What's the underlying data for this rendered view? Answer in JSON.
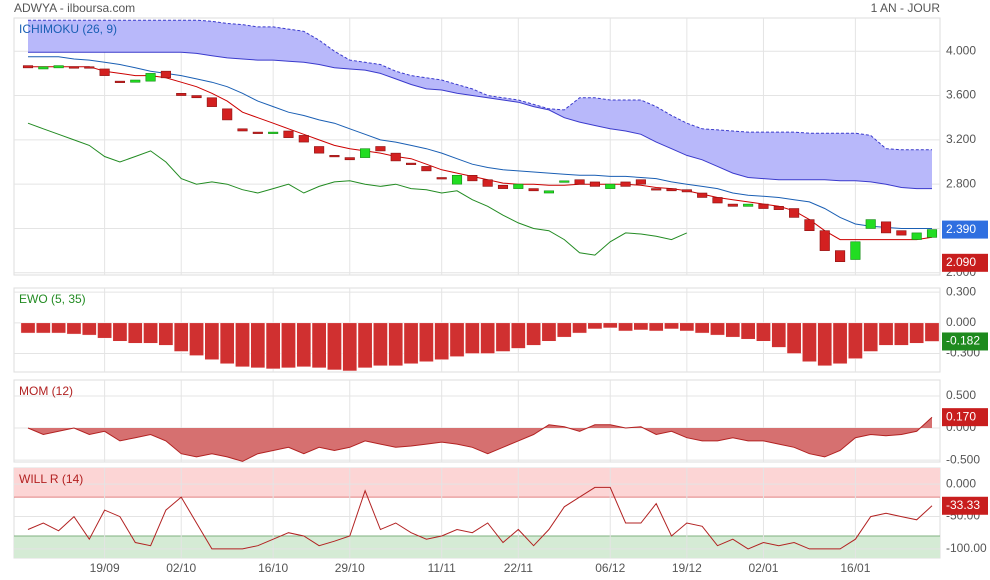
{
  "header": {
    "source": "ADWYA - ilboursa.com",
    "period": "1 AN - JOUR"
  },
  "chart_data": [
    {
      "type": "candlestick",
      "title": "ICHIMOKU (26, 9)",
      "title_color": "#1a5fb4",
      "categories": [
        null,
        null,
        null,
        null,
        null,
        "19/09",
        null,
        null,
        null,
        null,
        "02/10",
        null,
        null,
        null,
        null,
        null,
        "16/10",
        null,
        null,
        null,
        null,
        "29/10",
        null,
        null,
        null,
        null,
        null,
        "11/11",
        null,
        null,
        null,
        null,
        "22/11",
        null,
        null,
        null,
        null,
        null,
        "06/12",
        null,
        null,
        null,
        null,
        "19/12",
        null,
        null,
        null,
        null,
        "02/01",
        null,
        null,
        null,
        null,
        null,
        "16/01",
        null,
        null,
        null,
        null,
        null
      ],
      "open": [
        3.87,
        3.84,
        3.85,
        3.86,
        3.86,
        3.84,
        3.73,
        3.72,
        3.73,
        3.82,
        3.62,
        3.6,
        3.58,
        3.48,
        3.3,
        3.27,
        3.26,
        3.28,
        3.24,
        3.14,
        3.06,
        3.04,
        3.04,
        3.14,
        3.08,
        2.99,
        2.96,
        2.86,
        2.8,
        2.88,
        2.84,
        2.79,
        2.76,
        2.76,
        2.72,
        2.82,
        2.84,
        2.82,
        2.76,
        2.82,
        2.84,
        2.76,
        2.76,
        2.75,
        2.72,
        2.68,
        2.62,
        2.6,
        2.62,
        2.6,
        2.58,
        2.48,
        2.38,
        2.2,
        2.12,
        2.4,
        2.46,
        2.38,
        2.3,
        2.32
      ],
      "close": [
        3.85,
        3.86,
        3.87,
        3.85,
        3.86,
        3.78,
        3.72,
        3.74,
        3.8,
        3.76,
        3.6,
        3.58,
        3.5,
        3.38,
        3.28,
        3.27,
        3.27,
        3.22,
        3.18,
        3.08,
        3.05,
        3.02,
        3.12,
        3.1,
        3.01,
        2.98,
        2.92,
        2.85,
        2.88,
        2.83,
        2.78,
        2.76,
        2.8,
        2.74,
        2.74,
        2.83,
        2.8,
        2.78,
        2.8,
        2.78,
        2.8,
        2.75,
        2.74,
        2.73,
        2.68,
        2.63,
        2.6,
        2.62,
        2.58,
        2.57,
        2.5,
        2.38,
        2.2,
        2.1,
        2.28,
        2.48,
        2.36,
        2.34,
        2.36,
        2.39
      ],
      "up_color": "#22dd22",
      "down_color": "#d32020",
      "cloud": {
        "color": "#b8b8fa",
        "edge_color": "#3a3acc",
        "upper": [
          4.28,
          4.28,
          4.28,
          4.28,
          4.28,
          4.28,
          4.28,
          4.28,
          4.28,
          4.28,
          4.28,
          4.28,
          4.27,
          4.25,
          4.24,
          4.22,
          4.22,
          4.2,
          4.18,
          4.1,
          4.0,
          3.92,
          3.9,
          3.88,
          3.82,
          3.78,
          3.76,
          3.74,
          3.7,
          3.66,
          3.6,
          3.58,
          3.56,
          3.52,
          3.48,
          3.47,
          3.58,
          3.58,
          3.56,
          3.56,
          3.56,
          3.5,
          3.42,
          3.35,
          3.3,
          3.29,
          3.28,
          3.27,
          3.27,
          3.27,
          3.27,
          3.26,
          3.26,
          3.26,
          3.26,
          3.24,
          3.12,
          3.11,
          3.11,
          3.11
        ],
        "lower": [
          3.99,
          3.99,
          3.99,
          3.99,
          3.99,
          3.99,
          3.99,
          3.99,
          3.99,
          3.99,
          3.99,
          3.98,
          3.96,
          3.94,
          3.93,
          3.92,
          3.92,
          3.91,
          3.9,
          3.88,
          3.85,
          3.84,
          3.83,
          3.8,
          3.75,
          3.7,
          3.66,
          3.65,
          3.62,
          3.6,
          3.58,
          3.56,
          3.54,
          3.5,
          3.47,
          3.4,
          3.36,
          3.33,
          3.3,
          3.28,
          3.25,
          3.18,
          3.12,
          3.06,
          3.02,
          2.96,
          2.9,
          2.86,
          2.85,
          2.84,
          2.84,
          2.84,
          2.84,
          2.83,
          2.83,
          2.82,
          2.8,
          2.77,
          2.76,
          2.76
        ]
      },
      "series": [
        {
          "color": "#cc0000",
          "values": [
            3.86,
            3.86,
            3.86,
            3.86,
            3.86,
            3.82,
            3.8,
            3.78,
            3.78,
            3.76,
            3.72,
            3.68,
            3.62,
            3.55,
            3.45,
            3.4,
            3.35,
            3.3,
            3.25,
            3.2,
            3.15,
            3.12,
            3.1,
            3.08,
            3.05,
            3.03,
            2.98,
            2.93,
            2.9,
            2.87,
            2.84,
            2.81,
            2.8,
            2.8,
            2.79,
            2.79,
            2.8,
            2.8,
            2.8,
            2.8,
            2.79,
            2.77,
            2.76,
            2.74,
            2.71,
            2.68,
            2.66,
            2.64,
            2.62,
            2.6,
            2.56,
            2.48,
            2.38,
            2.3,
            2.3,
            2.3,
            2.3,
            2.3,
            2.3,
            2.32
          ]
        },
        {
          "color": "#1a5fb4",
          "values": [
            3.95,
            3.95,
            3.95,
            3.93,
            3.92,
            3.9,
            3.88,
            3.85,
            3.82,
            3.8,
            3.78,
            3.75,
            3.72,
            3.68,
            3.62,
            3.55,
            3.5,
            3.45,
            3.42,
            3.38,
            3.35,
            3.3,
            3.25,
            3.2,
            3.18,
            3.15,
            3.12,
            3.08,
            3.03,
            2.98,
            2.95,
            2.93,
            2.92,
            2.91,
            2.9,
            2.89,
            2.88,
            2.88,
            2.87,
            2.87,
            2.86,
            2.85,
            2.82,
            2.8,
            2.78,
            2.76,
            2.72,
            2.7,
            2.69,
            2.68,
            2.66,
            2.64,
            2.58,
            2.5,
            2.44,
            2.42,
            2.41,
            2.4,
            2.4,
            2.4
          ]
        },
        {
          "color": "#228b22",
          "values": [
            3.35,
            3.3,
            3.25,
            3.2,
            3.15,
            3.05,
            3.0,
            3.05,
            3.1,
            3.0,
            2.85,
            2.8,
            2.82,
            2.8,
            2.75,
            2.72,
            2.76,
            2.8,
            2.72,
            2.78,
            2.82,
            2.83,
            2.8,
            2.78,
            2.8,
            2.76,
            2.75,
            2.72,
            2.74,
            2.66,
            2.6,
            2.52,
            2.45,
            2.4,
            2.38,
            2.3,
            2.18,
            2.16,
            2.28,
            2.36,
            2.35,
            2.33,
            2.3,
            2.36,
            null,
            null,
            null,
            null,
            null,
            null,
            null,
            null,
            null,
            null,
            null,
            null,
            null,
            null,
            null,
            null
          ]
        }
      ],
      "ylim": [
        1.98,
        4.3
      ],
      "yticks": [
        {
          "value": 4,
          "label": "4.000"
        },
        {
          "value": 3.6,
          "label": "3.600"
        },
        {
          "value": 3.2,
          "label": "3.200"
        },
        {
          "value": 2.8,
          "label": "2.800"
        },
        {
          "value": 2.4,
          "label": "2.400"
        },
        {
          "value": 2,
          "label": "2.000"
        }
      ],
      "badges": [
        {
          "value": 2.39,
          "label": "2.390",
          "color": "#2f6fe0"
        },
        {
          "value": 2.09,
          "label": "2.090",
          "color": "#c81e1e"
        }
      ]
    },
    {
      "type": "bar",
      "title": "EWO (5, 35)",
      "title_color": "#228b22",
      "color": "#d03030",
      "values": [
        -0.1,
        -0.1,
        -0.1,
        -0.11,
        -0.12,
        -0.15,
        -0.18,
        -0.2,
        -0.2,
        -0.22,
        -0.28,
        -0.32,
        -0.36,
        -0.4,
        -0.43,
        -0.44,
        -0.45,
        -0.44,
        -0.43,
        -0.44,
        -0.46,
        -0.47,
        -0.44,
        -0.42,
        -0.42,
        -0.4,
        -0.38,
        -0.36,
        -0.33,
        -0.3,
        -0.3,
        -0.28,
        -0.25,
        -0.22,
        -0.18,
        -0.14,
        -0.1,
        -0.06,
        -0.05,
        -0.08,
        -0.07,
        -0.08,
        -0.06,
        -0.08,
        -0.1,
        -0.12,
        -0.14,
        -0.16,
        -0.18,
        -0.24,
        -0.3,
        -0.38,
        -0.42,
        -0.4,
        -0.35,
        -0.28,
        -0.22,
        -0.22,
        -0.2,
        -0.182
      ],
      "ylim": [
        -0.48,
        0.34
      ],
      "yticks": [
        {
          "value": 0.3,
          "label": "0.300"
        },
        {
          "value": 0,
          "label": "0.000"
        },
        {
          "value": -0.3,
          "label": "-0.300"
        }
      ],
      "badges": [
        {
          "value": -0.182,
          "label": "-0.182",
          "color": "#1e8a1e"
        }
      ]
    },
    {
      "type": "area",
      "title": "MOM (12)",
      "title_color": "#b22222",
      "color": "#d67070",
      "line_color": "#b22222",
      "values": [
        0,
        -0.1,
        -0.05,
        0,
        -0.1,
        -0.05,
        -0.2,
        -0.15,
        -0.1,
        -0.2,
        -0.4,
        -0.45,
        -0.4,
        -0.45,
        -0.52,
        -0.4,
        -0.35,
        -0.3,
        -0.4,
        -0.3,
        -0.35,
        -0.3,
        -0.2,
        -0.25,
        -0.3,
        -0.28,
        -0.25,
        -0.22,
        -0.25,
        -0.3,
        -0.4,
        -0.3,
        -0.2,
        -0.1,
        0.05,
        0.02,
        -0.05,
        0.05,
        0.05,
        0,
        0.02,
        -0.1,
        -0.05,
        -0.15,
        -0.2,
        -0.2,
        -0.15,
        -0.2,
        -0.2,
        -0.25,
        -0.3,
        -0.4,
        -0.45,
        -0.35,
        -0.15,
        -0.1,
        -0.12,
        -0.1,
        -0.05,
        0.17
      ],
      "ylim": [
        -0.53,
        0.75
      ],
      "yticks": [
        {
          "value": 0.5,
          "label": "0.500"
        },
        {
          "value": 0,
          "label": "0.000"
        },
        {
          "value": -0.5,
          "label": "-0.500"
        }
      ],
      "badges": [
        {
          "value": 0.17,
          "label": "0.170",
          "color": "#c81e1e"
        }
      ]
    },
    {
      "type": "line",
      "title": "WILL R (14)",
      "title_color": "#b22222",
      "color": "#b22222",
      "values": [
        -70,
        -60,
        -72,
        -50,
        -85,
        -40,
        -50,
        -90,
        -95,
        -40,
        -20,
        -60,
        -100,
        -100,
        -100,
        -95,
        -85,
        -75,
        -80,
        -95,
        -88,
        -80,
        -10,
        -70,
        -60,
        -75,
        -85,
        -80,
        -70,
        -75,
        -60,
        -90,
        -70,
        -95,
        -70,
        -35,
        -20,
        -5,
        -5,
        -60,
        -60,
        -30,
        -80,
        -60,
        -65,
        -95,
        -85,
        -100,
        -90,
        -95,
        -90,
        -100,
        -100,
        -100,
        -85,
        -50,
        -45,
        -50,
        -55,
        -33.33
      ],
      "overbought": -20,
      "oversold": -80,
      "overbought_color": "#fcd5d5",
      "oversold_color": "#d5ebd5",
      "ylim": [
        -114,
        25
      ],
      "yticks": [
        {
          "value": 0,
          "label": "0.000"
        },
        {
          "value": -50,
          "label": "-50.00"
        },
        {
          "value": -100,
          "label": "-100.00"
        }
      ],
      "badges": [
        {
          "value": -33.33,
          "label": "-33.33",
          "color": "#c81e1e"
        }
      ]
    }
  ]
}
